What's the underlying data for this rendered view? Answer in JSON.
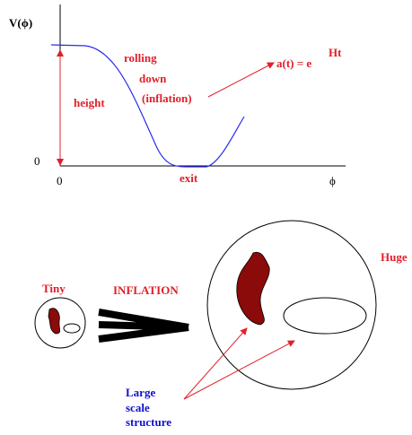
{
  "potential_plot": {
    "y_axis_label": "V(ϕ)",
    "y_origin_label": "0",
    "x_origin_label": "0",
    "x_axis_label": "ϕ",
    "annotations": {
      "rolling": "rolling",
      "down": "down",
      "inflation": "(inflation)",
      "height": "height",
      "scale_factor": "a(t) = e",
      "exponent": "Ht",
      "exit": "exit"
    }
  },
  "inflation_sketch": {
    "tiny": "Tiny",
    "arrow_label": "INFLATION",
    "huge": "Huge",
    "structure_lines": [
      "Large",
      "scale",
      "structure"
    ]
  }
}
